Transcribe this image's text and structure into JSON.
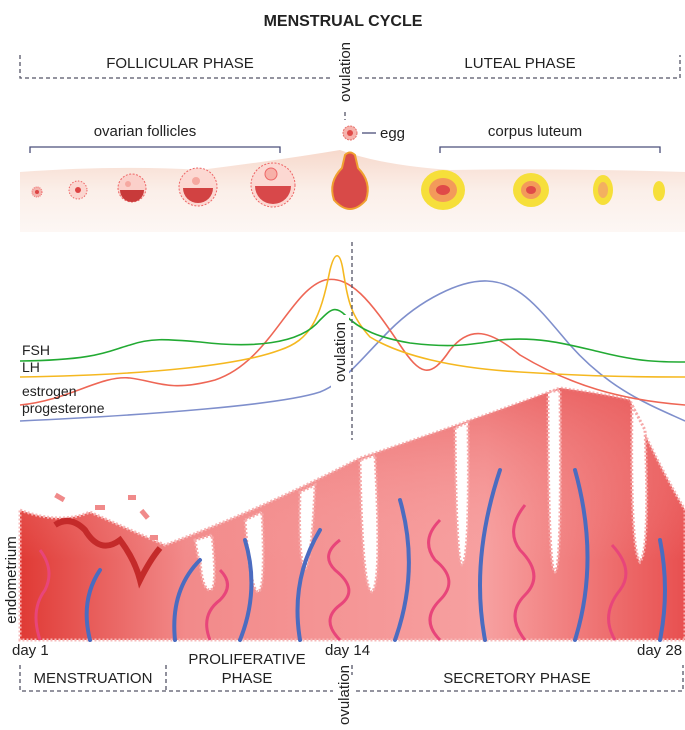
{
  "title": "MENSTRUAL CYCLE",
  "top_phases": {
    "follicular": "FOLLICULAR PHASE",
    "luteal": "LUTEAL PHASE",
    "ovulation": "ovulation"
  },
  "ovary": {
    "follicles_label": "ovarian follicles",
    "egg_label": "egg",
    "corpus_luteum_label": "corpus luteum"
  },
  "hormones": {
    "ovulation": "ovulation",
    "series": [
      {
        "name": "FSH",
        "color": "#22aa33"
      },
      {
        "name": "LH",
        "color": "#f5b820"
      },
      {
        "name": "estrogen",
        "color": "#ee6655"
      },
      {
        "name": "progesterone",
        "color": "#7f8fcc"
      }
    ]
  },
  "endometrium": {
    "label": "endometrium"
  },
  "days": {
    "start": "day 1",
    "mid": "day 14",
    "end": "day 28"
  },
  "bottom_phases": {
    "menstruation": "MENSTRUATION",
    "proliferative_1": "PROLIFERATIVE",
    "proliferative_2": "PHASE",
    "secretory": "SECRETORY PHASE",
    "ovulation": "ovulation"
  }
}
